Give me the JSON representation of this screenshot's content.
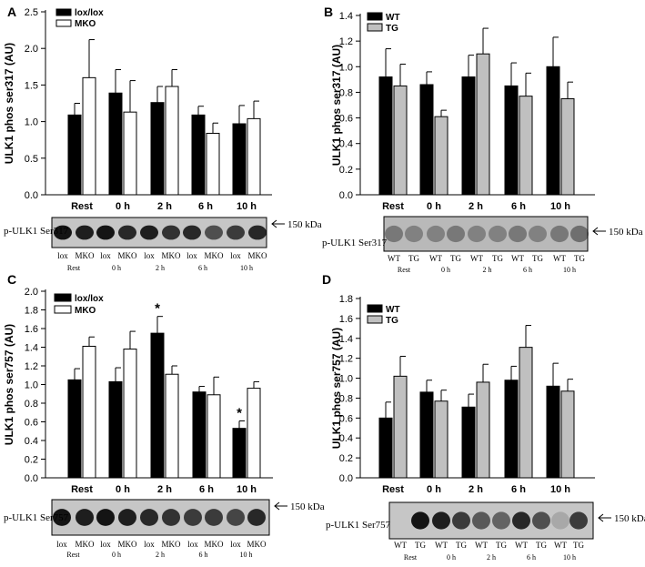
{
  "kda_label": "150 kDa",
  "chart_data": [
    {
      "panel": "A",
      "type": "bar",
      "ylabel": "ULK1 phos ser317 (AU)",
      "ylim": [
        0,
        2.5
      ],
      "ticks": [
        "0.0",
        "0.5",
        "1.0",
        "1.5",
        "2.0",
        "2.5"
      ],
      "categories": [
        "Rest",
        "0 h",
        "2 h",
        "6 h",
        "10 h"
      ],
      "series": [
        {
          "name": "lox/lox",
          "color": "#000000",
          "values": [
            1.09,
            1.39,
            1.26,
            1.09,
            0.97
          ],
          "errors": [
            0.16,
            0.32,
            0.22,
            0.12,
            0.25
          ]
        },
        {
          "name": "MKO",
          "color": "#ffffff",
          "values": [
            1.6,
            1.13,
            1.48,
            0.84,
            1.04
          ],
          "errors": [
            0.52,
            0.43,
            0.23,
            0.14,
            0.24
          ]
        }
      ],
      "significance": [
        "",
        "",
        "",
        "",
        ""
      ],
      "blot": {
        "label": "p-ULK1 Ser317",
        "lanes": [
          "lox",
          "MKO",
          "lox",
          "MKO",
          "lox",
          "MKO",
          "lox",
          "MKO",
          "lox",
          "MKO"
        ],
        "groups": [
          "Rest",
          "0 h",
          "2 h",
          "6 h",
          "10 h"
        ]
      }
    },
    {
      "panel": "B",
      "type": "bar",
      "ylabel": "ULK1 phos ser317 (AU)",
      "ylim": [
        0,
        1.4
      ],
      "ticks": [
        "0.0",
        "0.2",
        "0.4",
        "0.6",
        "0.8",
        "1.0",
        "1.2",
        "1.4"
      ],
      "categories": [
        "Rest",
        "0 h",
        "2 h",
        "6 h",
        "10 h"
      ],
      "series": [
        {
          "name": "WT",
          "color": "#000000",
          "values": [
            0.92,
            0.86,
            0.92,
            0.85,
            1.0
          ],
          "errors": [
            0.22,
            0.1,
            0.17,
            0.18,
            0.23
          ]
        },
        {
          "name": "TG",
          "color": "#c0c0c0",
          "values": [
            0.85,
            0.61,
            1.1,
            0.77,
            0.75
          ],
          "errors": [
            0.17,
            0.05,
            0.2,
            0.18,
            0.13
          ]
        }
      ],
      "significance": [
        "",
        "",
        "",
        "",
        ""
      ],
      "blot": {
        "label": "p-ULK1 Ser317",
        "lanes": [
          "WT",
          "TG",
          "WT",
          "TG",
          "WT",
          "TG",
          "WT",
          "TG",
          "WT",
          "TG"
        ],
        "groups": [
          "Rest",
          "0 h",
          "2 h",
          "6 h",
          "10 h"
        ]
      }
    },
    {
      "panel": "C",
      "type": "bar",
      "ylabel": "ULK1 phos ser757 (AU)",
      "ylim": [
        0,
        2.0
      ],
      "ticks": [
        "0.0",
        "0.2",
        "0.4",
        "0.6",
        "0.8",
        "1.0",
        "1.2",
        "1.4",
        "1.6",
        "1.8",
        "2.0"
      ],
      "categories": [
        "Rest",
        "0 h",
        "2 h",
        "6 h",
        "10 h"
      ],
      "series": [
        {
          "name": "lox/lox",
          "color": "#000000",
          "values": [
            1.05,
            1.03,
            1.55,
            0.92,
            0.53
          ],
          "errors": [
            0.12,
            0.15,
            0.18,
            0.06,
            0.08
          ]
        },
        {
          "name": "MKO",
          "color": "#ffffff",
          "values": [
            1.41,
            1.38,
            1.11,
            0.89,
            0.96
          ],
          "errors": [
            0.1,
            0.19,
            0.09,
            0.19,
            0.07
          ]
        }
      ],
      "significance": [
        "",
        "",
        "*",
        "",
        "*"
      ],
      "blot": {
        "label": "p-ULK1 Ser757",
        "lanes": [
          "lox",
          "MKO",
          "lox",
          "MKO",
          "lox",
          "MKO",
          "lox",
          "MKO",
          "lox",
          "MKO"
        ],
        "groups": [
          "Rest",
          "0 h",
          "2 h",
          "6 h",
          "10 h"
        ]
      }
    },
    {
      "panel": "D",
      "type": "bar",
      "ylabel": "ULK1 phos ser757 (AU)",
      "ylim": [
        0,
        1.8
      ],
      "ticks": [
        "0.0",
        "0.2",
        "0.4",
        "0.6",
        "0.8",
        "1.0",
        "1.2",
        "1.4",
        "1.6",
        "1.8"
      ],
      "categories": [
        "Rest",
        "0 h",
        "2 h",
        "6 h",
        "10 h"
      ],
      "series": [
        {
          "name": "WT",
          "color": "#000000",
          "values": [
            0.6,
            0.86,
            0.71,
            0.98,
            0.92
          ],
          "errors": [
            0.16,
            0.12,
            0.13,
            0.14,
            0.23
          ]
        },
        {
          "name": "TG",
          "color": "#c0c0c0",
          "values": [
            1.02,
            0.77,
            0.96,
            1.31,
            0.87
          ],
          "errors": [
            0.2,
            0.11,
            0.18,
            0.22,
            0.12
          ]
        }
      ],
      "significance": [
        "",
        "",
        "",
        "",
        ""
      ],
      "blot": {
        "label": "p-ULK1 Ser757",
        "lanes": [
          "WT",
          "TG",
          "WT",
          "TG",
          "WT",
          "TG",
          "WT",
          "TG",
          "WT",
          "TG"
        ],
        "groups": [
          "Rest",
          "0 h",
          "2 h",
          "6 h",
          "10 h"
        ]
      }
    }
  ]
}
